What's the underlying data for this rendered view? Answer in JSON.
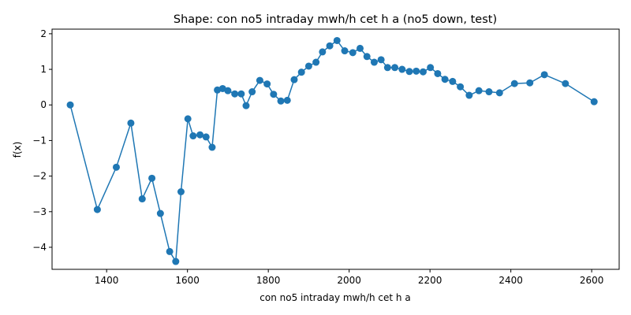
{
  "chart_data": {
    "type": "line",
    "title": "Shape: con no5 intraday mwh/h cet h a (no5 down, test)",
    "xlabel": "con no5 intraday mwh/h cet h a",
    "ylabel": "f(x)",
    "xlim": [
      1265,
      2668
    ],
    "ylim": [
      -4.62,
      2.13
    ],
    "x_ticks": [
      1400,
      1600,
      1800,
      2000,
      2200,
      2400,
      2600
    ],
    "y_ticks": [
      -4,
      -3,
      -2,
      -1,
      0,
      1,
      2
    ],
    "x_tick_labels": [
      "1400",
      "1600",
      "1800",
      "2000",
      "2200",
      "2400",
      "2600"
    ],
    "y_tick_labels": [
      "−4",
      "−3",
      "−2",
      "−1",
      "0",
      "1",
      "2"
    ],
    "grid": false,
    "series": [
      {
        "color": "#1f77b4",
        "marker": "circle",
        "x": [
          1310,
          1377,
          1424,
          1460,
          1488,
          1512,
          1533,
          1556,
          1571,
          1584,
          1601,
          1614,
          1631,
          1646,
          1661,
          1674,
          1687,
          1700,
          1717,
          1733,
          1745,
          1760,
          1779,
          1797,
          1813,
          1831,
          1847,
          1864,
          1882,
          1900,
          1918,
          1934,
          1952,
          1970,
          1989,
          2009,
          2027,
          2044,
          2062,
          2079,
          2095,
          2113,
          2131,
          2149,
          2166,
          2183,
          2201,
          2219,
          2237,
          2256,
          2275,
          2297,
          2321,
          2346,
          2372,
          2409,
          2447,
          2483,
          2535,
          2606
        ],
        "y": [
          0.0,
          -2.94,
          -1.75,
          -0.51,
          -2.64,
          -2.06,
          -3.05,
          -4.12,
          -4.4,
          -2.44,
          -0.39,
          -0.87,
          -0.84,
          -0.9,
          -1.19,
          0.42,
          0.46,
          0.4,
          0.31,
          0.31,
          -0.02,
          0.37,
          0.69,
          0.59,
          0.3,
          0.11,
          0.13,
          0.71,
          0.92,
          1.09,
          1.2,
          1.49,
          1.66,
          1.81,
          1.52,
          1.47,
          1.59,
          1.36,
          1.2,
          1.27,
          1.05,
          1.05,
          1.0,
          0.94,
          0.95,
          0.93,
          1.05,
          0.88,
          0.72,
          0.66,
          0.51,
          0.27,
          0.4,
          0.37,
          0.34,
          0.6,
          0.62,
          0.85,
          0.6,
          0.09
        ]
      }
    ]
  }
}
